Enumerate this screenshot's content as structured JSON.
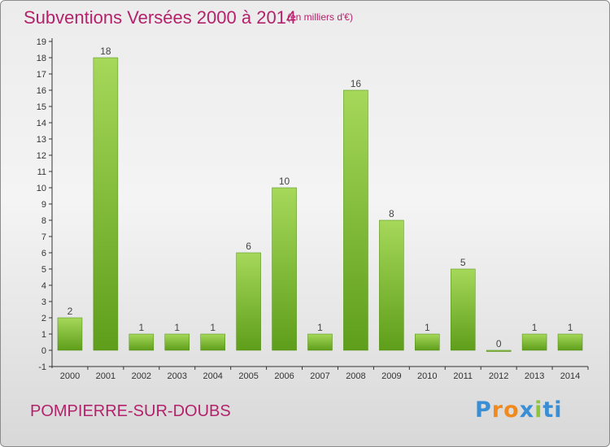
{
  "header": {
    "title": "Subventions Versées 2000 à 2014",
    "unit": "(en milliers d'€)"
  },
  "footer": {
    "commune": "POMPIERRE-SUR-DOUBS",
    "logo_letters": [
      "P",
      "r",
      "o",
      "x",
      "i",
      "t",
      "i"
    ]
  },
  "colors": {
    "title": "#b3226b",
    "bar_light": "#a6d85a",
    "bar_dark": "#5e9e1a",
    "logo": [
      "#3a8fd4",
      "#f08a1c",
      "#f08a1c",
      "#3a8fd4",
      "#8cc63f",
      "#3a8fd4",
      "#3a8fd4"
    ]
  },
  "chart_data": {
    "type": "bar",
    "title": "Subventions Versées 2000 à 2014",
    "subtitle": "(en milliers d'€)",
    "categories": [
      "2000",
      "2001",
      "2002",
      "2003",
      "2004",
      "2005",
      "2006",
      "2007",
      "2008",
      "2009",
      "2010",
      "2011",
      "2012",
      "2013",
      "2014"
    ],
    "values": [
      2,
      18,
      1,
      1,
      1,
      6,
      10,
      1,
      16,
      8,
      1,
      5,
      0,
      1,
      1
    ],
    "ylim": [
      -1,
      19
    ],
    "yticks": [
      -1,
      0,
      1,
      2,
      3,
      4,
      5,
      6,
      7,
      8,
      9,
      10,
      11,
      12,
      13,
      14,
      15,
      16,
      17,
      18,
      19
    ],
    "grid": false,
    "legend": "none"
  }
}
